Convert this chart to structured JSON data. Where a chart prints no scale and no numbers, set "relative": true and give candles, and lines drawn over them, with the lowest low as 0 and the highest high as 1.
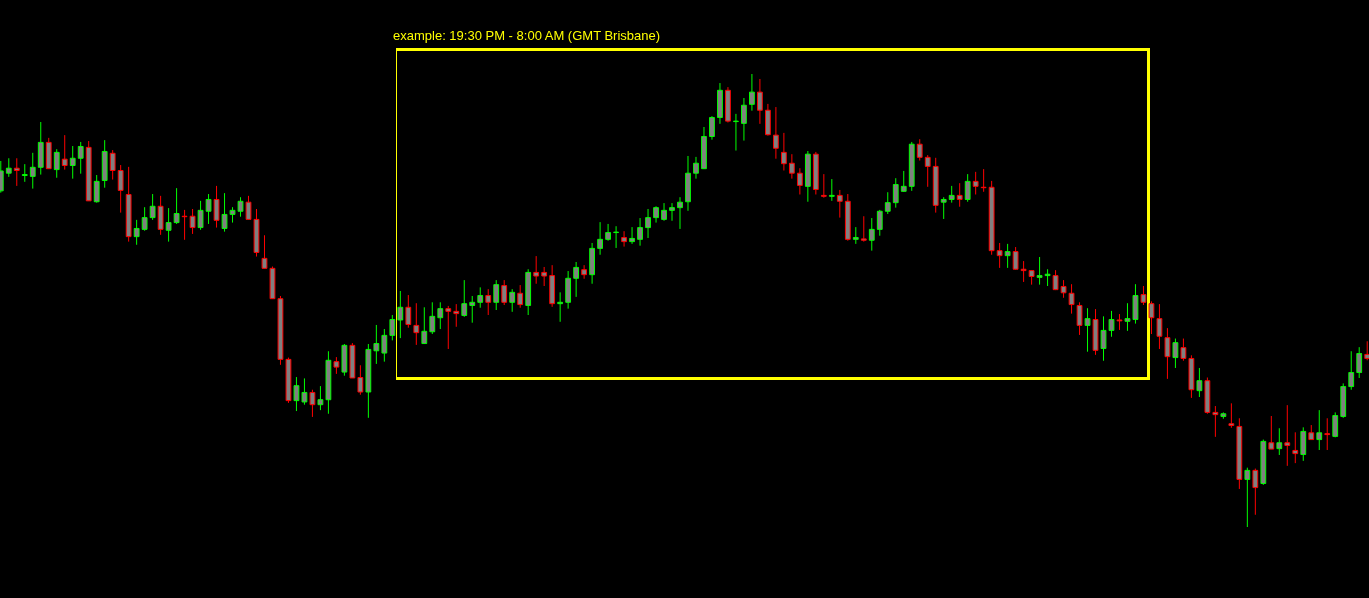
{
  "chart_data": {
    "type": "candlestick",
    "relative": true,
    "annotations": [
      "example: 19:30 PM - 8:00 AM (GMT Brisbane)"
    ],
    "categories": [
      null,
      null,
      null,
      null,
      null,
      null,
      null,
      null,
      null,
      null,
      null,
      null,
      null,
      null,
      null,
      null,
      null,
      null,
      null,
      null,
      null,
      null,
      null,
      null,
      null,
      null,
      null,
      null,
      null,
      null,
      null,
      null,
      null,
      null,
      null,
      null,
      null,
      null,
      null,
      null,
      null,
      null,
      null,
      null,
      null,
      null,
      null,
      null,
      null,
      null,
      null,
      null,
      null,
      null,
      null,
      null,
      null,
      null,
      null,
      null,
      null,
      null,
      null,
      null,
      null,
      null,
      null,
      null,
      null,
      null,
      null,
      null,
      null,
      null,
      null,
      null,
      null,
      null,
      null,
      null,
      null,
      null,
      null,
      null,
      null,
      null,
      null,
      null,
      null,
      null,
      null,
      null,
      null,
      null,
      null,
      null,
      null,
      null,
      null,
      null,
      null,
      null,
      null,
      null,
      null,
      null,
      null,
      null,
      null,
      null,
      null,
      null,
      null,
      null,
      null,
      null,
      null,
      null,
      null,
      null,
      null,
      null,
      null,
      null,
      null,
      null,
      null,
      null,
      null,
      null,
      null,
      null,
      null,
      null,
      null,
      null,
      null,
      null,
      null,
      null,
      null,
      null,
      null,
      null,
      null,
      null,
      null,
      null,
      null,
      null,
      null,
      null,
      null,
      null,
      null,
      null,
      null,
      null,
      null,
      null,
      null,
      null,
      null,
      null,
      null,
      null,
      null,
      null,
      null,
      null,
      null,
      null
    ],
    "ohlc": [
      [
        0.742,
        0.808,
        0.738,
        0.786
      ],
      [
        0.781,
        0.814,
        0.773,
        0.792
      ],
      [
        0.792,
        0.814,
        0.753,
        0.787
      ],
      [
        0.776,
        0.801,
        0.762,
        0.778
      ],
      [
        0.774,
        0.826,
        0.747,
        0.794
      ],
      [
        0.794,
        0.894,
        0.778,
        0.849
      ],
      [
        0.849,
        0.859,
        0.791,
        0.791
      ],
      [
        0.789,
        0.834,
        0.771,
        0.827
      ],
      [
        0.812,
        0.865,
        0.789,
        0.798
      ],
      [
        0.798,
        0.841,
        0.769,
        0.814
      ],
      [
        0.814,
        0.85,
        0.78,
        0.84
      ],
      [
        0.838,
        0.852,
        0.72,
        0.72
      ],
      [
        0.718,
        0.777,
        0.716,
        0.763
      ],
      [
        0.765,
        0.854,
        0.749,
        0.829
      ],
      [
        0.825,
        0.832,
        0.767,
        0.787
      ],
      [
        0.787,
        0.799,
        0.694,
        0.743
      ],
      [
        0.734,
        0.795,
        0.63,
        0.641
      ],
      [
        0.641,
        0.678,
        0.623,
        0.659
      ],
      [
        0.657,
        0.706,
        0.654,
        0.683
      ],
      [
        0.683,
        0.735,
        0.678,
        0.708
      ],
      [
        0.708,
        0.731,
        0.645,
        0.657
      ],
      [
        0.655,
        0.704,
        0.63,
        0.672
      ],
      [
        0.672,
        0.748,
        0.669,
        0.692
      ],
      [
        0.686,
        0.7,
        0.634,
        0.685
      ],
      [
        0.686,
        0.702,
        0.647,
        0.661
      ],
      [
        0.661,
        0.72,
        0.656,
        0.699
      ],
      [
        0.697,
        0.735,
        0.669,
        0.723
      ],
      [
        0.723,
        0.753,
        0.661,
        0.677
      ],
      [
        0.659,
        0.737,
        0.652,
        0.69
      ],
      [
        0.69,
        0.706,
        0.672,
        0.699
      ],
      [
        0.697,
        0.728,
        0.685,
        0.719
      ],
      [
        0.717,
        0.731,
        0.679,
        0.679
      ],
      [
        0.679,
        0.702,
        0.597,
        0.606
      ],
      [
        0.593,
        0.644,
        0.571,
        0.571
      ],
      [
        0.571,
        0.575,
        0.504,
        0.504
      ],
      [
        0.504,
        0.51,
        0.358,
        0.37
      ],
      [
        0.37,
        0.374,
        0.274,
        0.279
      ],
      [
        0.279,
        0.331,
        0.256,
        0.312
      ],
      [
        0.276,
        0.328,
        0.27,
        0.297
      ],
      [
        0.297,
        0.303,
        0.243,
        0.27
      ],
      [
        0.27,
        0.311,
        0.258,
        0.281
      ],
      [
        0.281,
        0.388,
        0.25,
        0.368
      ],
      [
        0.365,
        0.375,
        0.338,
        0.353
      ],
      [
        0.342,
        0.404,
        0.334,
        0.401
      ],
      [
        0.401,
        0.406,
        0.329,
        0.329
      ],
      [
        0.33,
        0.357,
        0.292,
        0.298
      ],
      [
        0.298,
        0.404,
        0.241,
        0.392
      ],
      [
        0.389,
        0.446,
        0.36,
        0.405
      ],
      [
        0.384,
        0.437,
        0.365,
        0.423
      ],
      [
        0.423,
        0.468,
        0.412,
        0.458
      ],
      [
        0.457,
        0.521,
        0.417,
        0.485
      ],
      [
        0.485,
        0.512,
        0.44,
        0.447
      ],
      [
        0.445,
        0.494,
        0.402,
        0.429
      ],
      [
        0.405,
        0.485,
        0.404,
        0.432
      ],
      [
        0.431,
        0.496,
        0.426,
        0.465
      ],
      [
        0.462,
        0.496,
        0.437,
        0.482
      ],
      [
        0.482,
        0.488,
        0.393,
        0.476
      ],
      [
        0.476,
        0.492,
        0.442,
        0.471
      ],
      [
        0.467,
        0.545,
        0.464,
        0.493
      ],
      [
        0.489,
        0.51,
        0.451,
        0.496
      ],
      [
        0.496,
        0.529,
        0.484,
        0.511
      ],
      [
        0.511,
        0.525,
        0.468,
        0.496
      ],
      [
        0.496,
        0.545,
        0.479,
        0.535
      ],
      [
        0.533,
        0.545,
        0.49,
        0.496
      ],
      [
        0.496,
        0.525,
        0.475,
        0.518
      ],
      [
        0.516,
        0.534,
        0.484,
        0.491
      ],
      [
        0.489,
        0.569,
        0.468,
        0.562
      ],
      [
        0.562,
        0.598,
        0.537,
        0.554
      ],
      [
        0.562,
        0.574,
        0.532,
        0.554
      ],
      [
        0.555,
        0.578,
        0.486,
        0.493
      ],
      [
        0.493,
        0.518,
        0.453,
        0.496
      ],
      [
        0.496,
        0.565,
        0.482,
        0.549
      ],
      [
        0.549,
        0.585,
        0.508,
        0.573
      ],
      [
        0.568,
        0.578,
        0.548,
        0.557
      ],
      [
        0.557,
        0.627,
        0.537,
        0.615
      ],
      [
        0.615,
        0.673,
        0.601,
        0.635
      ],
      [
        0.635,
        0.669,
        0.632,
        0.65
      ],
      [
        0.65,
        0.664,
        0.616,
        0.651
      ],
      [
        0.639,
        0.653,
        0.619,
        0.63
      ],
      [
        0.63,
        0.662,
        0.625,
        0.637
      ],
      [
        0.635,
        0.682,
        0.621,
        0.661
      ],
      [
        0.661,
        0.702,
        0.638,
        0.683
      ],
      [
        0.683,
        0.708,
        0.672,
        0.705
      ],
      [
        0.679,
        0.715,
        0.676,
        0.699
      ],
      [
        0.699,
        0.715,
        0.676,
        0.705
      ],
      [
        0.705,
        0.728,
        0.658,
        0.717
      ],
      [
        0.718,
        0.819,
        0.698,
        0.781
      ],
      [
        0.781,
        0.817,
        0.769,
        0.803
      ],
      [
        0.791,
        0.883,
        0.791,
        0.862
      ],
      [
        0.862,
        0.907,
        0.855,
        0.904
      ],
      [
        0.904,
        0.98,
        0.89,
        0.964
      ],
      [
        0.964,
        0.971,
        0.893,
        0.896
      ],
      [
        0.895,
        0.912,
        0.831,
        0.896
      ],
      [
        0.891,
        0.947,
        0.853,
        0.931
      ],
      [
        0.933,
        1.0,
        0.919,
        0.96
      ],
      [
        0.96,
        0.989,
        0.89,
        0.92
      ],
      [
        0.92,
        0.934,
        0.864,
        0.866
      ],
      [
        0.865,
        0.927,
        0.813,
        0.836
      ],
      [
        0.827,
        0.87,
        0.787,
        0.802
      ],
      [
        0.803,
        0.823,
        0.769,
        0.781
      ],
      [
        0.781,
        0.792,
        0.734,
        0.754
      ],
      [
        0.752,
        0.83,
        0.718,
        0.823
      ],
      [
        0.823,
        0.828,
        0.734,
        0.745
      ],
      [
        0.732,
        0.779,
        0.727,
        0.73
      ],
      [
        0.73,
        0.768,
        0.72,
        0.732
      ],
      [
        0.732,
        0.744,
        0.683,
        0.719
      ],
      [
        0.719,
        0.735,
        0.632,
        0.635
      ],
      [
        0.635,
        0.662,
        0.625,
        0.639
      ],
      [
        0.636,
        0.686,
        0.63,
        0.633
      ],
      [
        0.633,
        0.682,
        0.61,
        0.657
      ],
      [
        0.657,
        0.7,
        0.643,
        0.697
      ],
      [
        0.697,
        0.739,
        0.691,
        0.716
      ],
      [
        0.716,
        0.77,
        0.705,
        0.756
      ],
      [
        0.741,
        0.786,
        0.74,
        0.752
      ],
      [
        0.752,
        0.85,
        0.742,
        0.845
      ],
      [
        0.845,
        0.856,
        0.809,
        0.816
      ],
      [
        0.816,
        0.821,
        0.751,
        0.796
      ],
      [
        0.796,
        0.815,
        0.694,
        0.71
      ],
      [
        0.717,
        0.728,
        0.68,
        0.723
      ],
      [
        0.723,
        0.753,
        0.716,
        0.732
      ],
      [
        0.732,
        0.759,
        0.707,
        0.723
      ],
      [
        0.723,
        0.779,
        0.718,
        0.763
      ],
      [
        0.763,
        0.784,
        0.734,
        0.752
      ],
      [
        0.75,
        0.79,
        0.74,
        0.749
      ],
      [
        0.75,
        0.764,
        0.601,
        0.61
      ],
      [
        0.61,
        0.627,
        0.572,
        0.599
      ],
      [
        0.599,
        0.625,
        0.572,
        0.608
      ],
      [
        0.608,
        0.618,
        0.568,
        0.569
      ],
      [
        0.569,
        0.587,
        0.541,
        0.566
      ],
      [
        0.566,
        0.567,
        0.535,
        0.553
      ],
      [
        0.551,
        0.596,
        0.535,
        0.555
      ],
      [
        0.555,
        0.569,
        0.532,
        0.558
      ],
      [
        0.555,
        0.567,
        0.523,
        0.524
      ],
      [
        0.531,
        0.545,
        0.506,
        0.517
      ],
      [
        0.516,
        0.536,
        0.471,
        0.491
      ],
      [
        0.489,
        0.496,
        0.424,
        0.445
      ],
      [
        0.445,
        0.483,
        0.387,
        0.46
      ],
      [
        0.458,
        0.481,
        0.38,
        0.39
      ],
      [
        0.394,
        0.465,
        0.367,
        0.434
      ],
      [
        0.434,
        0.477,
        0.42,
        0.458
      ],
      [
        0.457,
        0.47,
        0.435,
        0.455
      ],
      [
        0.454,
        0.494,
        0.433,
        0.46
      ],
      [
        0.458,
        0.536,
        0.449,
        0.511
      ],
      [
        0.513,
        0.532,
        0.49,
        0.496
      ],
      [
        0.493,
        0.498,
        0.426,
        0.462
      ],
      [
        0.46,
        0.492,
        0.393,
        0.421
      ],
      [
        0.418,
        0.439,
        0.327,
        0.376
      ],
      [
        0.374,
        0.416,
        0.351,
        0.407
      ],
      [
        0.396,
        0.416,
        0.367,
        0.372
      ],
      [
        0.372,
        0.379,
        0.285,
        0.303
      ],
      [
        0.301,
        0.351,
        0.287,
        0.323
      ],
      [
        0.323,
        0.33,
        0.25,
        0.253
      ],
      [
        0.253,
        0.267,
        0.199,
        0.248
      ],
      [
        0.244,
        0.253,
        0.239,
        0.25
      ],
      [
        0.228,
        0.273,
        0.219,
        0.224
      ],
      [
        0.222,
        0.24,
        0.084,
        0.105
      ],
      [
        0.105,
        0.131,
        0.0,
        0.125
      ],
      [
        0.125,
        0.129,
        0.027,
        0.087
      ],
      [
        0.096,
        0.193,
        0.093,
        0.189
      ],
      [
        0.186,
        0.245,
        0.172,
        0.172
      ],
      [
        0.173,
        0.218,
        0.159,
        0.186
      ],
      [
        0.186,
        0.269,
        0.135,
        0.18
      ],
      [
        0.169,
        0.209,
        0.141,
        0.162
      ],
      [
        0.16,
        0.22,
        0.146,
        0.211
      ],
      [
        0.208,
        0.225,
        0.193,
        0.193
      ],
      [
        0.193,
        0.258,
        0.17,
        0.208
      ],
      [
        0.206,
        0.24,
        0.17,
        0.204
      ],
      [
        0.2,
        0.253,
        0.198,
        0.246
      ],
      [
        0.244,
        0.317,
        0.241,
        0.31
      ],
      [
        0.31,
        0.388,
        0.303,
        0.341
      ],
      [
        0.341,
        0.397,
        0.329,
        0.383
      ],
      [
        0.381,
        0.41,
        0.368,
        0.372
      ]
    ],
    "colors": [
      "#00ff00",
      "#00ff00",
      "#ff0000",
      "#00ff00",
      "#00ff00",
      "#00ff00",
      "#ff0000",
      "#00ff00",
      "#ff0000",
      "#00ff00",
      "#00ff00",
      "#ff0000",
      "#00ff00",
      "#00ff00",
      "#ff0000",
      "#ff0000",
      "#ff0000",
      "#00ff00",
      "#00ff00",
      "#00ff00",
      "#ff0000",
      "#00ff00",
      "#00ff00",
      "#ff0000",
      "#ff0000",
      "#00ff00",
      "#00ff00",
      "#ff0000",
      "#00ff00",
      "#00ff00",
      "#00ff00",
      "#ff0000",
      "#ff0000",
      "#ff0000",
      "#ff0000",
      "#ff0000",
      "#ff0000",
      "#00ff00",
      "#00ff00",
      "#ff0000",
      "#00ff00",
      "#00ff00",
      "#ff0000",
      "#00ff00",
      "#ff0000",
      "#ff0000",
      "#00ff00",
      "#00ff00",
      "#00ff00",
      "#00ff00",
      "#00ff00",
      "#ff0000",
      "#ff0000",
      "#00ff00",
      "#00ff00",
      "#00ff00",
      "#ff0000",
      "#ff0000",
      "#00ff00",
      "#00ff00",
      "#00ff00",
      "#ff0000",
      "#00ff00",
      "#ff0000",
      "#00ff00",
      "#ff0000",
      "#00ff00",
      "#ff0000",
      "#ff0000",
      "#ff0000",
      "#00ff00",
      "#00ff00",
      "#00ff00",
      "#ff0000",
      "#00ff00",
      "#00ff00",
      "#00ff00",
      "#00ff00",
      "#ff0000",
      "#00ff00",
      "#00ff00",
      "#00ff00",
      "#00ff00",
      "#00ff00",
      "#00ff00",
      "#00ff00",
      "#00ff00",
      "#00ff00",
      "#00ff00",
      "#00ff00",
      "#00ff00",
      "#ff0000",
      "#00ff00",
      "#00ff00",
      "#00ff00",
      "#ff0000",
      "#ff0000",
      "#ff0000",
      "#ff0000",
      "#ff0000",
      "#ff0000",
      "#00ff00",
      "#ff0000",
      "#ff0000",
      "#00ff00",
      "#ff0000",
      "#ff0000",
      "#00ff00",
      "#ff0000",
      "#00ff00",
      "#00ff00",
      "#00ff00",
      "#00ff00",
      "#00ff00",
      "#00ff00",
      "#ff0000",
      "#ff0000",
      "#ff0000",
      "#00ff00",
      "#00ff00",
      "#ff0000",
      "#00ff00",
      "#ff0000",
      "#ff0000",
      "#ff0000",
      "#ff0000",
      "#00ff00",
      "#ff0000",
      "#ff0000",
      "#ff0000",
      "#00ff00",
      "#00ff00",
      "#ff0000",
      "#ff0000",
      "#ff0000",
      "#ff0000",
      "#00ff00",
      "#ff0000",
      "#00ff00",
      "#00ff00",
      "#ff0000",
      "#00ff00",
      "#00ff00",
      "#ff0000",
      "#ff0000",
      "#ff0000",
      "#ff0000",
      "#00ff00",
      "#ff0000",
      "#ff0000",
      "#00ff00",
      "#ff0000",
      "#ff0000",
      "#00ff00",
      "#ff0000",
      "#ff0000",
      "#00ff00",
      "#ff0000",
      "#00ff00",
      "#ff0000",
      "#00ff00",
      "#ff0000",
      "#ff0000",
      "#00ff00",
      "#ff0000",
      "#00ff00",
      "#ff0000",
      "#00ff00",
      "#00ff00",
      "#00ff00",
      "#00ff00",
      "#ff0000"
    ]
  }
}
